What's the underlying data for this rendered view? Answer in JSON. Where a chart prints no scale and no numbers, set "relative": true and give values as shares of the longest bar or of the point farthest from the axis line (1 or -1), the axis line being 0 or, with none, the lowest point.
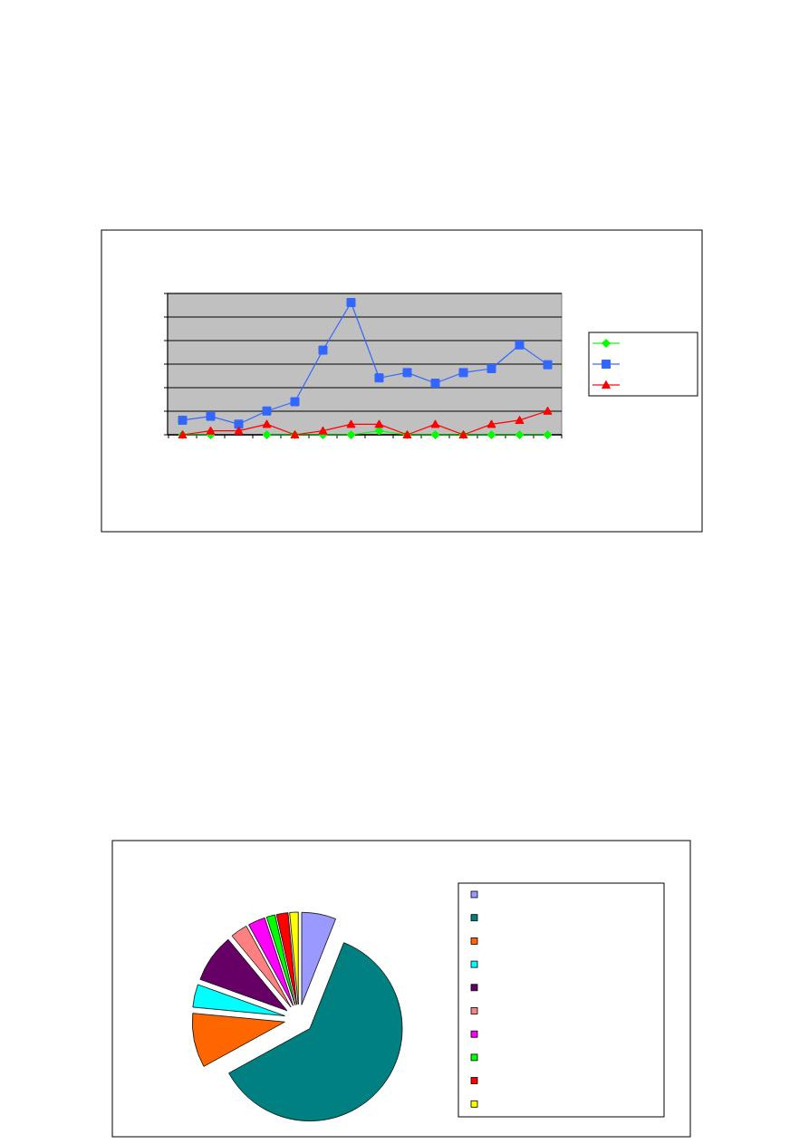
{
  "chart_data": [
    {
      "type": "line",
      "relative": true,
      "grid": true,
      "categories": [
        null,
        null,
        null,
        null,
        null,
        null,
        null,
        null,
        null,
        null,
        null,
        null,
        null,
        null
      ],
      "series": [
        {
          "color": "#00ff00",
          "marker": "diamond",
          "values": [
            0,
            0,
            null,
            0,
            0,
            0,
            0,
            0.03,
            0,
            0,
            0,
            0,
            0,
            0
          ]
        },
        {
          "color": "#3366ff",
          "marker": "square",
          "values": [
            0.11,
            0.14,
            0.08,
            0.18,
            0.25,
            0.64,
            1,
            0.43,
            0.47,
            0.39,
            0.47,
            0.5,
            0.68,
            0.53
          ]
        },
        {
          "color": "#ff0000",
          "marker": "triangle",
          "values": [
            0,
            0.03,
            0.03,
            0.08,
            0,
            0.03,
            0.08,
            0.08,
            0,
            0.08,
            0,
            0.08,
            0.11,
            0.18
          ]
        }
      ]
    },
    {
      "type": "pie",
      "categories": [
        null,
        null,
        null,
        null,
        null,
        null,
        null,
        null,
        null,
        null
      ],
      "values": [
        6,
        61,
        9.5,
        4,
        8.5,
        3,
        3,
        1.5,
        2,
        1.5
      ],
      "colors": [
        "#9999ff",
        "#008080",
        "#ff6600",
        "#00ffff",
        "#660066",
        "#ff8080",
        "#ff00ff",
        "#00ff00",
        "#ff0000",
        "#ffff00"
      ]
    }
  ]
}
